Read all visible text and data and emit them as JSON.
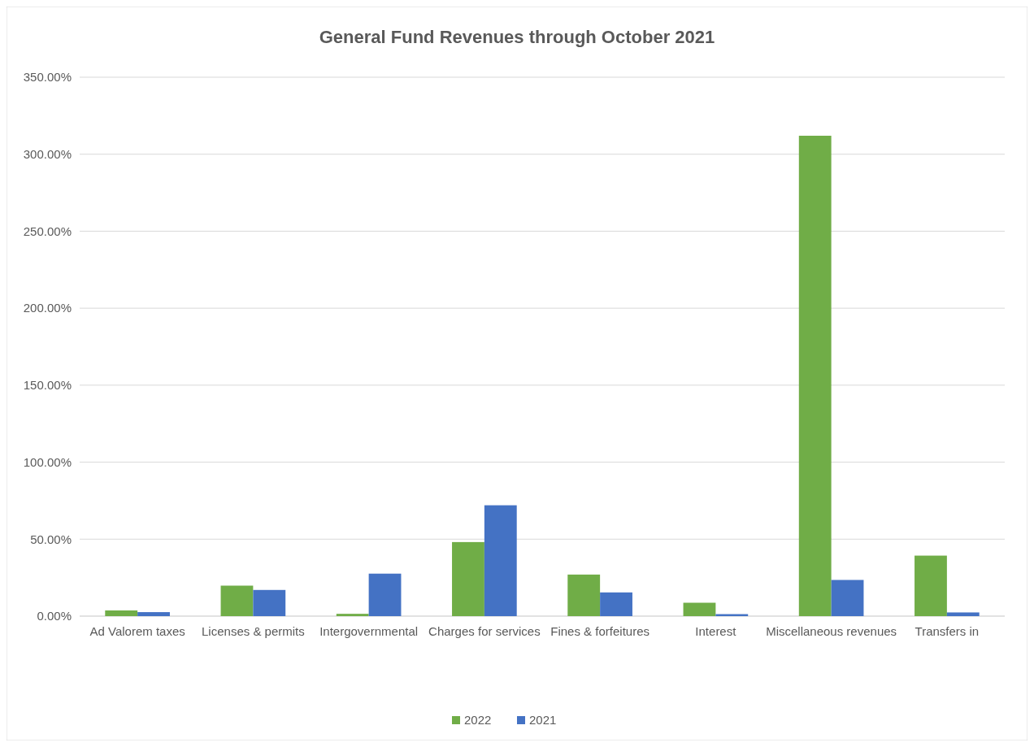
{
  "chart_data": {
    "type": "bar",
    "title": "General Fund Revenues through October 2021",
    "categories": [
      "Ad Valorem taxes",
      "Licenses & permits",
      "Intergovernmental",
      "Charges for services",
      "Fines & forfeitures",
      "Interest",
      "Miscellaneous revenues",
      "Transfers in"
    ],
    "series": [
      {
        "name": "2022",
        "color": "#70ad47",
        "values": [
          3.7,
          19.8,
          1.5,
          48.1,
          27.0,
          8.7,
          312,
          39.3
        ]
      },
      {
        "name": "2021",
        "color": "#4472c4",
        "values": [
          2.6,
          17.0,
          27.6,
          72.0,
          15.4,
          1.3,
          23.5,
          2.4
        ]
      }
    ],
    "ylim": [
      0,
      350
    ],
    "yticks": [
      {
        "value": 0,
        "label": "0.00%"
      },
      {
        "value": 50,
        "label": "50.00%"
      },
      {
        "value": 100,
        "label": "100.00%"
      },
      {
        "value": 150,
        "label": "150.00%"
      },
      {
        "value": 200,
        "label": "200.00%"
      },
      {
        "value": 250,
        "label": "250.00%"
      },
      {
        "value": 300,
        "label": "300.00%"
      },
      {
        "value": 350,
        "label": "350.00%"
      }
    ],
    "grid": "y",
    "legend": "bottom"
  }
}
